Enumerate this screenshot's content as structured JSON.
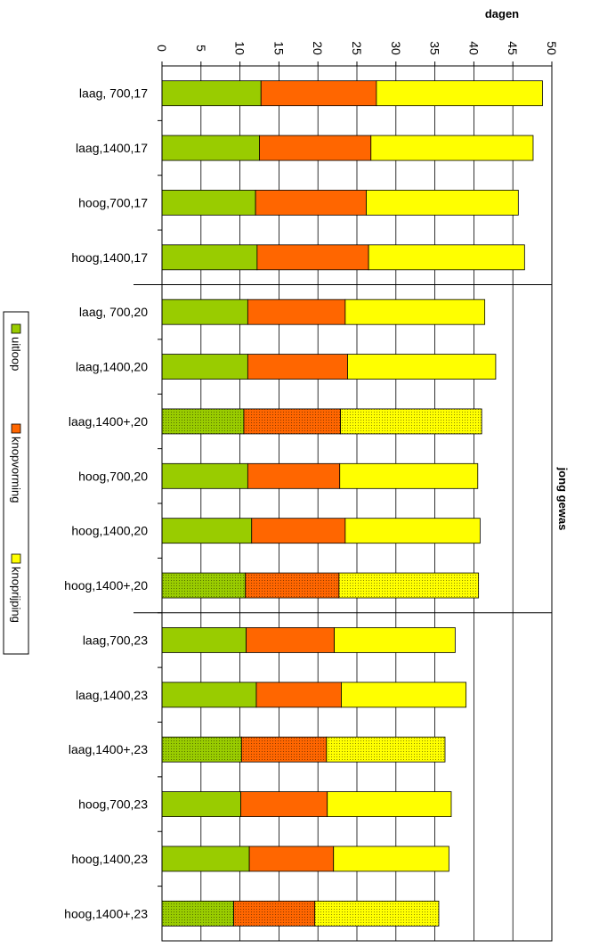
{
  "chart_data": {
    "type": "bar",
    "orientation": "horizontal-stacked",
    "xlabel": "dagen",
    "group_label": "jong gewas",
    "xlim": [
      0,
      50
    ],
    "x_ticks": [
      0,
      5,
      10,
      15,
      20,
      25,
      30,
      35,
      40,
      45,
      50
    ],
    "grid": true,
    "legend_position": "left",
    "categories": [
      "laag, 700,17",
      "laag,1400,17",
      "hoog,700,17",
      "hoog,1400,17",
      "laag, 700,20",
      "laag,1400,20",
      "laag,1400+,20",
      "hoog,700,20",
      "hoog,1400,20",
      "hoog,1400+,20",
      "laag,700,23",
      "laag,1400,23",
      "laag,1400+,23",
      "hoog,700,23",
      "hoog,1400,23",
      "hoog,1400+,23"
    ],
    "group_separators_after": [
      3,
      9
    ],
    "dotted_categories": [
      6,
      9,
      12,
      15
    ],
    "series": [
      {
        "name": "uitloop",
        "color": "#99cc00",
        "values": [
          12.7,
          12.5,
          12.0,
          12.2,
          11.0,
          11.0,
          10.5,
          11.0,
          11.5,
          10.7,
          10.8,
          12.1,
          10.2,
          10.1,
          11.2,
          9.2
        ]
      },
      {
        "name": "knopvorming",
        "color": "#ff6600",
        "values": [
          14.8,
          14.3,
          14.2,
          14.3,
          12.5,
          12.8,
          12.4,
          11.8,
          12.0,
          12.0,
          11.3,
          10.9,
          10.9,
          11.1,
          10.8,
          10.4
        ]
      },
      {
        "name": "knoprijping",
        "color": "#ffff00",
        "values": [
          21.3,
          20.8,
          19.5,
          20.0,
          17.9,
          19.0,
          18.1,
          17.7,
          17.3,
          17.9,
          15.5,
          16.0,
          15.2,
          15.9,
          14.8,
          15.9
        ]
      }
    ]
  }
}
